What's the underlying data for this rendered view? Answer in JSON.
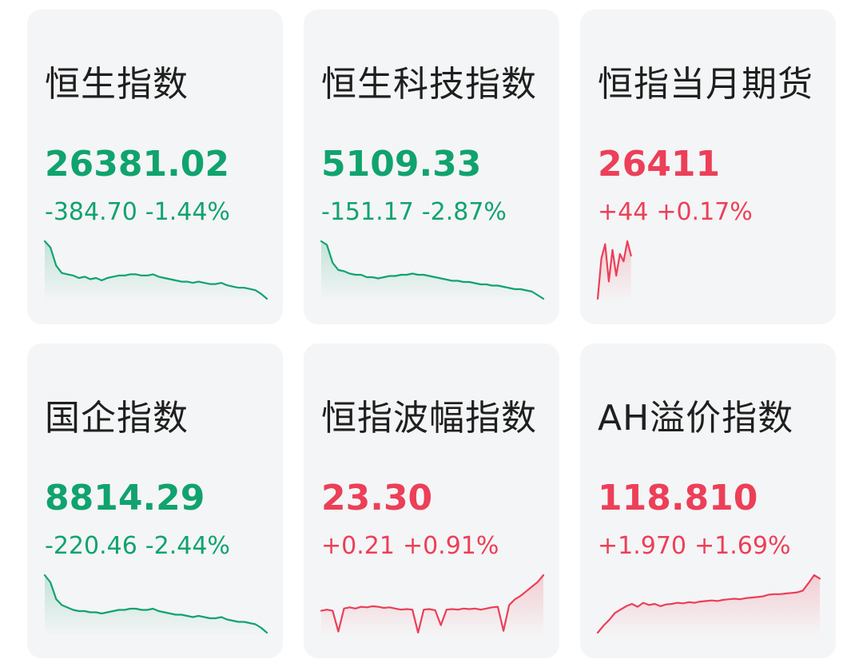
{
  "colors": {
    "up": "#ec3f58",
    "down": "#10a36e",
    "card_bg": "#f4f5f6"
  },
  "cards": [
    {
      "name": "恒生指数",
      "price": "26381.02",
      "change": "-384.70",
      "change_pct": "-1.44%",
      "direction": "down",
      "spark": [
        100,
        95,
        80,
        74,
        73,
        72,
        70,
        71,
        69,
        70,
        68,
        70,
        71,
        72,
        72,
        73,
        73,
        72,
        72,
        73,
        71,
        70,
        69,
        68,
        67,
        67,
        66,
        67,
        66,
        65,
        65,
        66,
        64,
        63,
        62,
        62,
        61,
        60,
        57,
        53
      ]
    },
    {
      "name": "恒生科技指数",
      "price": "5109.33",
      "change": "-151.17",
      "change_pct": "-2.87%",
      "direction": "down",
      "spark": [
        100,
        97,
        82,
        76,
        75,
        73,
        72,
        72,
        70,
        70,
        69,
        70,
        71,
        71,
        72,
        72,
        73,
        72,
        72,
        71,
        70,
        69,
        68,
        67,
        67,
        66,
        66,
        65,
        64,
        64,
        63,
        63,
        62,
        61,
        60,
        60,
        59,
        58,
        55,
        52
      ]
    },
    {
      "name": "恒指当月期货",
      "price": "26411",
      "change": "+44",
      "change_pct": "+0.17%",
      "direction": "up",
      "spark": [
        0,
        70,
        95,
        30,
        85,
        40,
        78,
        65,
        100,
        75
      ],
      "spark_fraction": 0.15
    },
    {
      "name": "国企指数",
      "price": "8814.29",
      "change": "-220.46",
      "change_pct": "-2.44%",
      "direction": "down",
      "spark": [
        100,
        94,
        80,
        75,
        73,
        71,
        70,
        70,
        69,
        69,
        68,
        69,
        70,
        71,
        71,
        72,
        72,
        71,
        71,
        72,
        70,
        69,
        68,
        67,
        67,
        66,
        65,
        66,
        65,
        64,
        64,
        65,
        63,
        62,
        61,
        61,
        60,
        59,
        56,
        52
      ]
    },
    {
      "name": "恒指波幅指数",
      "price": "23.30",
      "change": "+0.21",
      "change_pct": "+0.91%",
      "direction": "up",
      "spark": [
        38,
        40,
        38,
        2,
        42,
        44,
        42,
        45,
        44,
        46,
        45,
        43,
        44,
        42,
        40,
        41,
        40,
        0,
        40,
        41,
        39,
        13,
        40,
        41,
        40,
        42,
        41,
        42,
        40,
        42,
        44,
        45,
        3,
        48,
        58,
        64,
        72,
        80,
        88,
        100
      ]
    },
    {
      "name": "AH溢价指数",
      "price": "118.810",
      "change": "+1.970",
      "change_pct": "+1.69%",
      "direction": "up",
      "spark": [
        0,
        12,
        22,
        34,
        40,
        46,
        50,
        45,
        52,
        48,
        50,
        46,
        49,
        50,
        52,
        51,
        53,
        52,
        54,
        55,
        56,
        55,
        57,
        58,
        59,
        58,
        60,
        61,
        62,
        63,
        66,
        67,
        67,
        68,
        69,
        70,
        73,
        86,
        100,
        94
      ]
    }
  ]
}
